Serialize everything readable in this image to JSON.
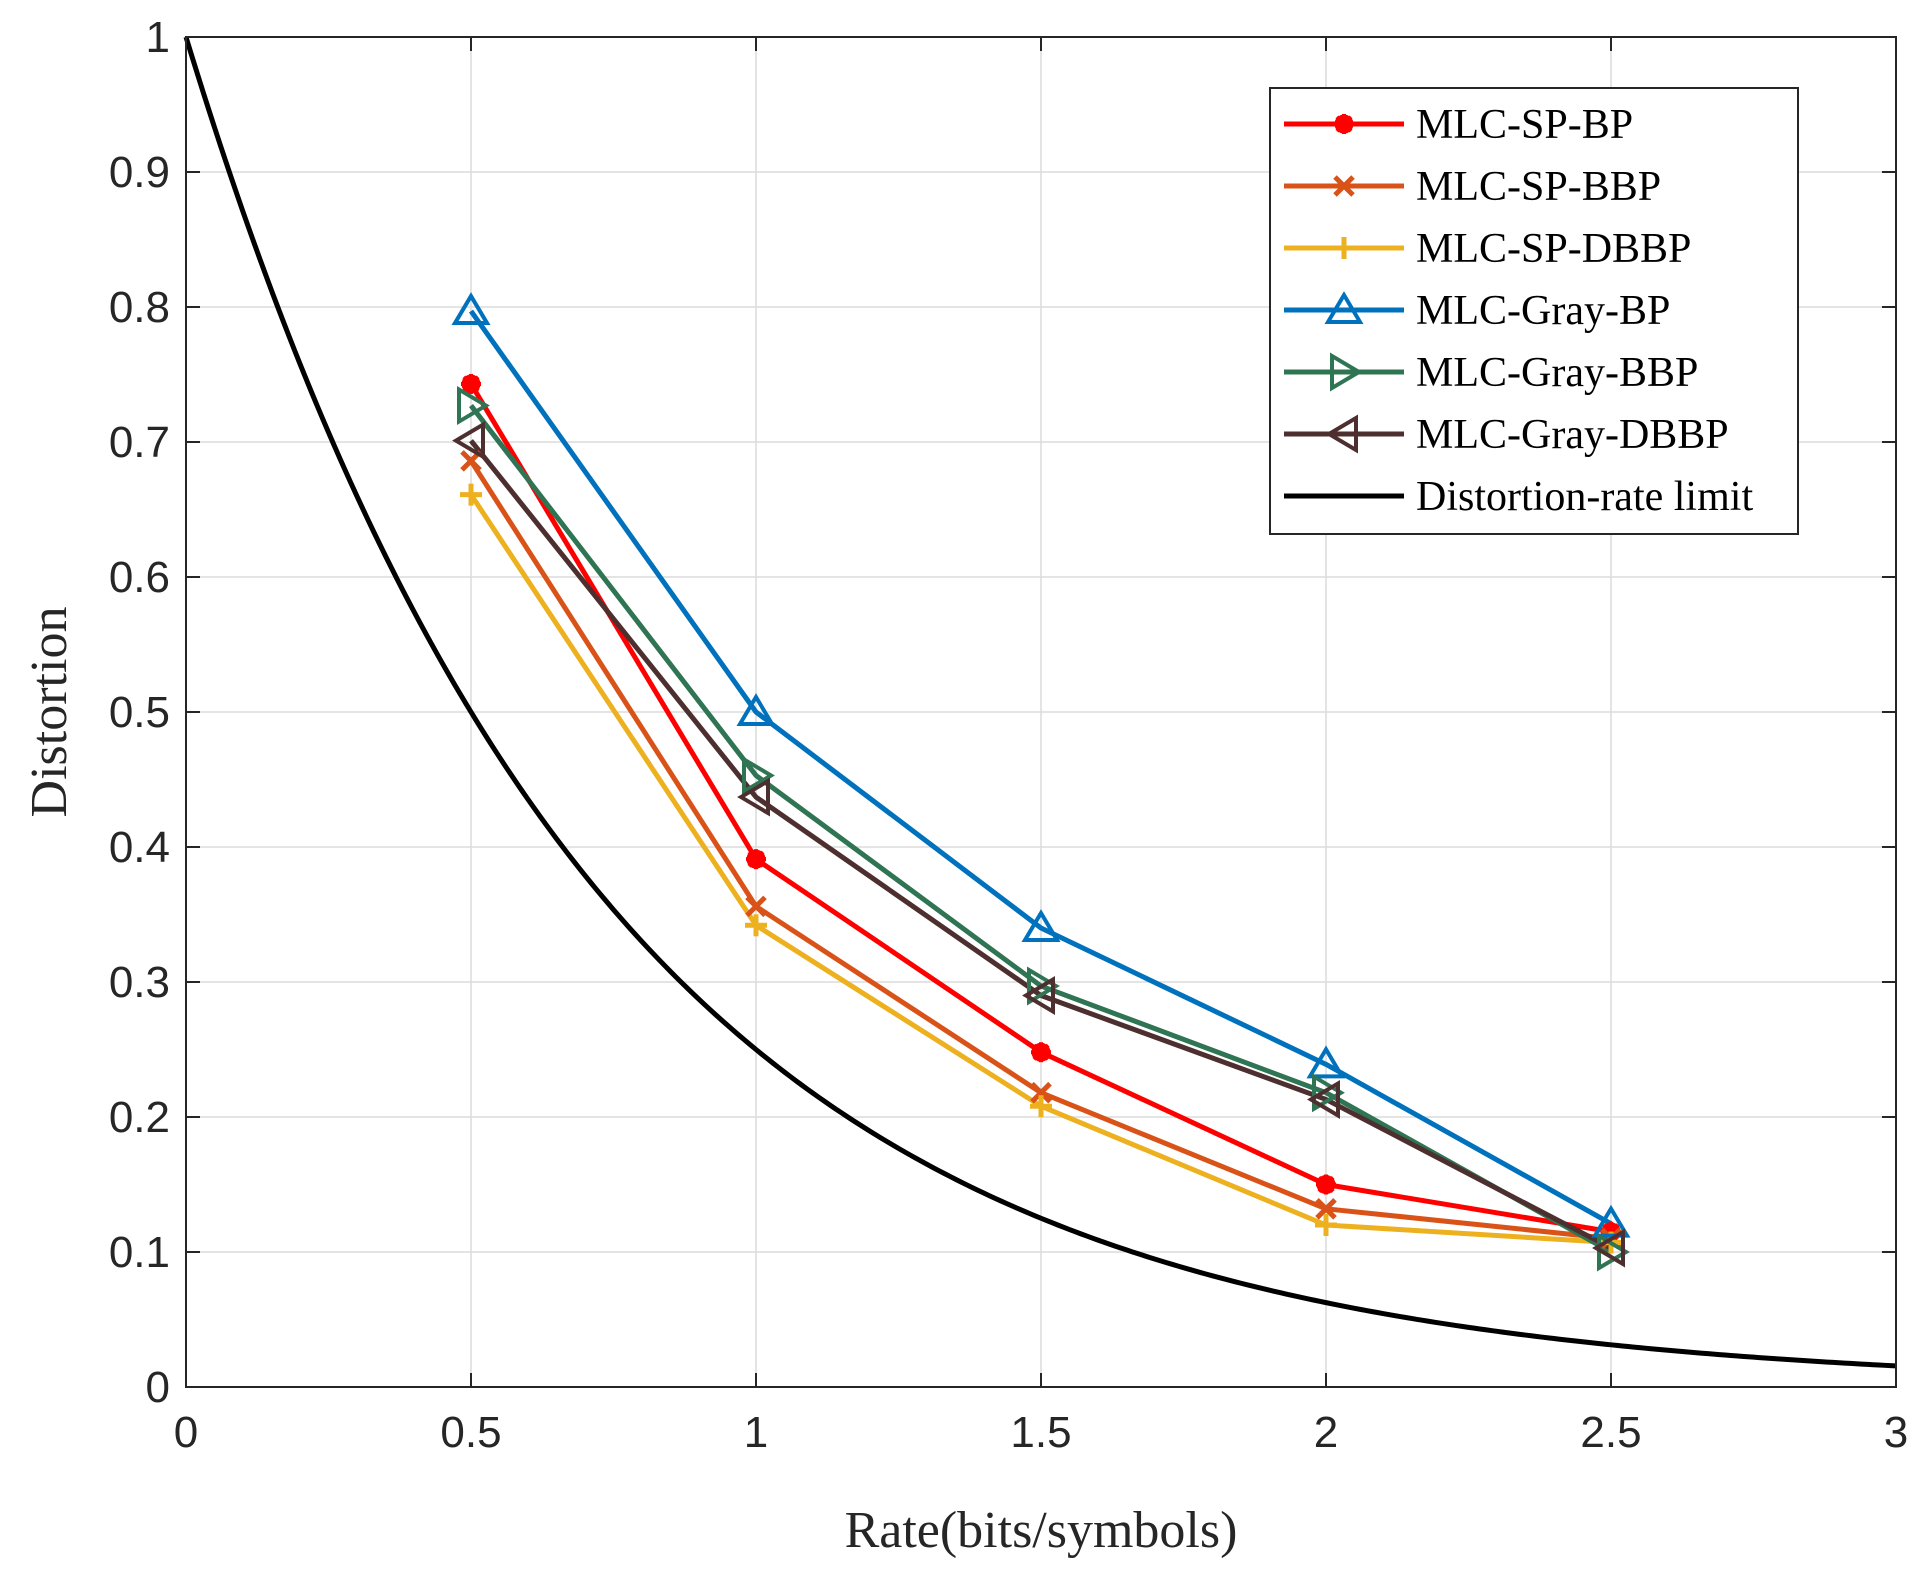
{
  "chart_data": {
    "type": "line",
    "title": "",
    "xlabel": "Rate(bits/symbols)",
    "ylabel": "Distortion",
    "xlim": [
      0,
      3
    ],
    "ylim": [
      0,
      1
    ],
    "grid": true,
    "legend_position": "top-right",
    "xticks": [
      {
        "value": 0,
        "label": "0"
      },
      {
        "value": 0.5,
        "label": "0.5"
      },
      {
        "value": 1,
        "label": "1"
      },
      {
        "value": 1.5,
        "label": "1.5"
      },
      {
        "value": 2,
        "label": "2"
      },
      {
        "value": 2.5,
        "label": "2.5"
      },
      {
        "value": 3,
        "label": "3"
      }
    ],
    "yticks": [
      {
        "value": 0,
        "label": "0"
      },
      {
        "value": 0.1,
        "label": "0.1"
      },
      {
        "value": 0.2,
        "label": "0.2"
      },
      {
        "value": 0.3,
        "label": "0.3"
      },
      {
        "value": 0.4,
        "label": "0.4"
      },
      {
        "value": 0.5,
        "label": "0.5"
      },
      {
        "value": 0.6,
        "label": "0.6"
      },
      {
        "value": 0.7,
        "label": "0.7"
      },
      {
        "value": 0.8,
        "label": "0.8"
      },
      {
        "value": 0.9,
        "label": "0.9"
      },
      {
        "value": 1,
        "label": "1"
      }
    ],
    "series": [
      {
        "name": "MLC-SP-BP",
        "color": "#FF0000",
        "marker": "asterisk",
        "x": [
          0.5,
          1,
          1.5,
          2,
          2.5
        ],
        "values": [
          0.743,
          0.391,
          0.248,
          0.15,
          0.115
        ]
      },
      {
        "name": "MLC-SP-BBP",
        "color": "#D95319",
        "marker": "x",
        "x": [
          0.5,
          1,
          1.5,
          2,
          2.5
        ],
        "values": [
          0.686,
          0.356,
          0.218,
          0.132,
          0.11
        ]
      },
      {
        "name": "MLC-SP-DBBP",
        "color": "#EDB120",
        "marker": "plus",
        "x": [
          0.5,
          1,
          1.5,
          2,
          2.5
        ],
        "values": [
          0.661,
          0.342,
          0.208,
          0.12,
          0.107
        ]
      },
      {
        "name": "MLC-Gray-BP",
        "color": "#0072BD",
        "marker": "triangle-up",
        "x": [
          0.5,
          1,
          1.5,
          2,
          2.5
        ],
        "values": [
          0.797,
          0.5,
          0.34,
          0.239,
          0.121
        ]
      },
      {
        "name": "MLC-Gray-BBP",
        "color": "#2F7453",
        "marker": "triangle-right",
        "x": [
          0.5,
          1,
          1.5,
          2,
          2.5
        ],
        "values": [
          0.727,
          0.453,
          0.297,
          0.218,
          0.1
        ]
      },
      {
        "name": "MLC-Gray-DBBP",
        "color": "#4E2F2F",
        "marker": "triangle-left",
        "x": [
          0.5,
          1,
          1.5,
          2,
          2.5
        ],
        "values": [
          0.701,
          0.437,
          0.29,
          0.213,
          0.103
        ]
      },
      {
        "name": "Distortion-rate limit",
        "color": "#000000",
        "marker": "none",
        "function": "D(R) = 2^(-2R)",
        "x_range": [
          0,
          3
        ]
      }
    ]
  }
}
